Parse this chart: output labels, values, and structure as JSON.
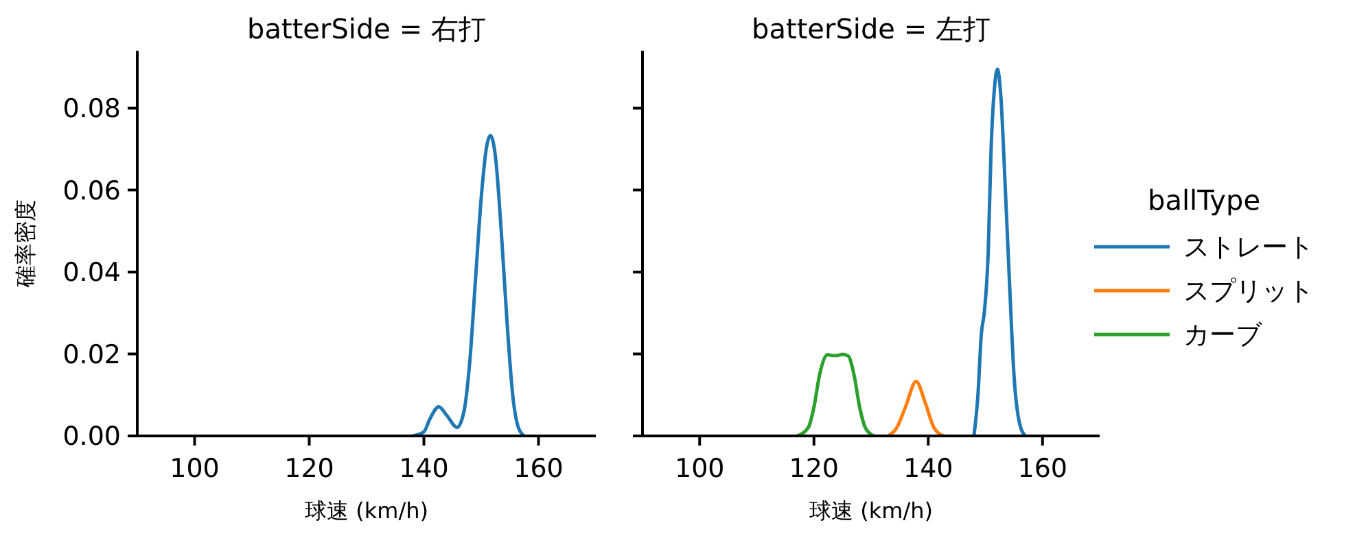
{
  "chart_data": [
    {
      "type": "line",
      "title": "batterSide = 右打",
      "xlabel": "球速 (km/h)",
      "ylabel": "確率密度",
      "xlim": [
        90,
        170
      ],
      "ylim": [
        0,
        0.094
      ],
      "xticks": [
        100,
        120,
        140,
        160
      ],
      "yticks": [
        {
          "value": 0,
          "label": "0.00"
        },
        0.02,
        0.04,
        0.06,
        0.08
      ],
      "grid": false,
      "legend": false,
      "series": [
        {
          "color": "#1f77b4",
          "x": [
            138,
            140,
            141,
            142.6,
            144,
            145.8,
            147,
            148,
            149,
            150,
            151,
            151.6,
            152.5,
            153.5,
            154.5,
            155.5,
            156.5,
            157.5
          ],
          "values": [
            0,
            0.001,
            0.004,
            0.0071,
            0.005,
            0.0021,
            0.006,
            0.018,
            0.038,
            0.058,
            0.071,
            0.0733,
            0.068,
            0.05,
            0.028,
            0.01,
            0.002,
            0
          ]
        }
      ]
    },
    {
      "type": "line",
      "title": "batterSide = 左打",
      "xlabel": "球速 (km/h)",
      "xlim": [
        90,
        170
      ],
      "ylim": [
        0,
        0.094
      ],
      "xticks": [
        100,
        120,
        140,
        160
      ],
      "yticks": [
        {
          "value": 0,
          "label": null
        },
        {
          "value": 0.02,
          "label": null
        },
        {
          "value": 0.04,
          "label": null
        },
        {
          "value": 0.06,
          "label": null
        },
        {
          "value": 0.08,
          "label": null
        }
      ],
      "tick_labels": "x",
      "grid": false,
      "legend": "right",
      "legend_title": "ballType",
      "series": [
        {
          "name": "ストレート",
          "color": "#1f77b4",
          "x": [
            148,
            148.7,
            149.3,
            149.8,
            150.5,
            151,
            151.6,
            152.1,
            152.7,
            153.5,
            154.3,
            155,
            156,
            157
          ],
          "values": [
            0,
            0.01,
            0.025,
            0.03,
            0.045,
            0.07,
            0.085,
            0.0895,
            0.083,
            0.06,
            0.035,
            0.015,
            0.003,
            0
          ]
        },
        {
          "name": "スプリット",
          "color": "#ff7f0e",
          "x": [
            133,
            134.5,
            136,
            137.9,
            139.5,
            141,
            142.7
          ],
          "values": [
            0,
            0.002,
            0.007,
            0.0133,
            0.008,
            0.002,
            0
          ]
        },
        {
          "name": "カーブ",
          "color": "#2ca02c",
          "x": [
            117,
            119,
            120,
            121,
            122.4,
            123.3,
            124,
            125,
            126,
            127,
            128,
            129,
            130.5
          ],
          "values": [
            0,
            0.002,
            0.007,
            0.015,
            0.0198,
            0.0196,
            0.0196,
            0.0199,
            0.0195,
            0.015,
            0.007,
            0.002,
            0
          ]
        }
      ]
    }
  ]
}
